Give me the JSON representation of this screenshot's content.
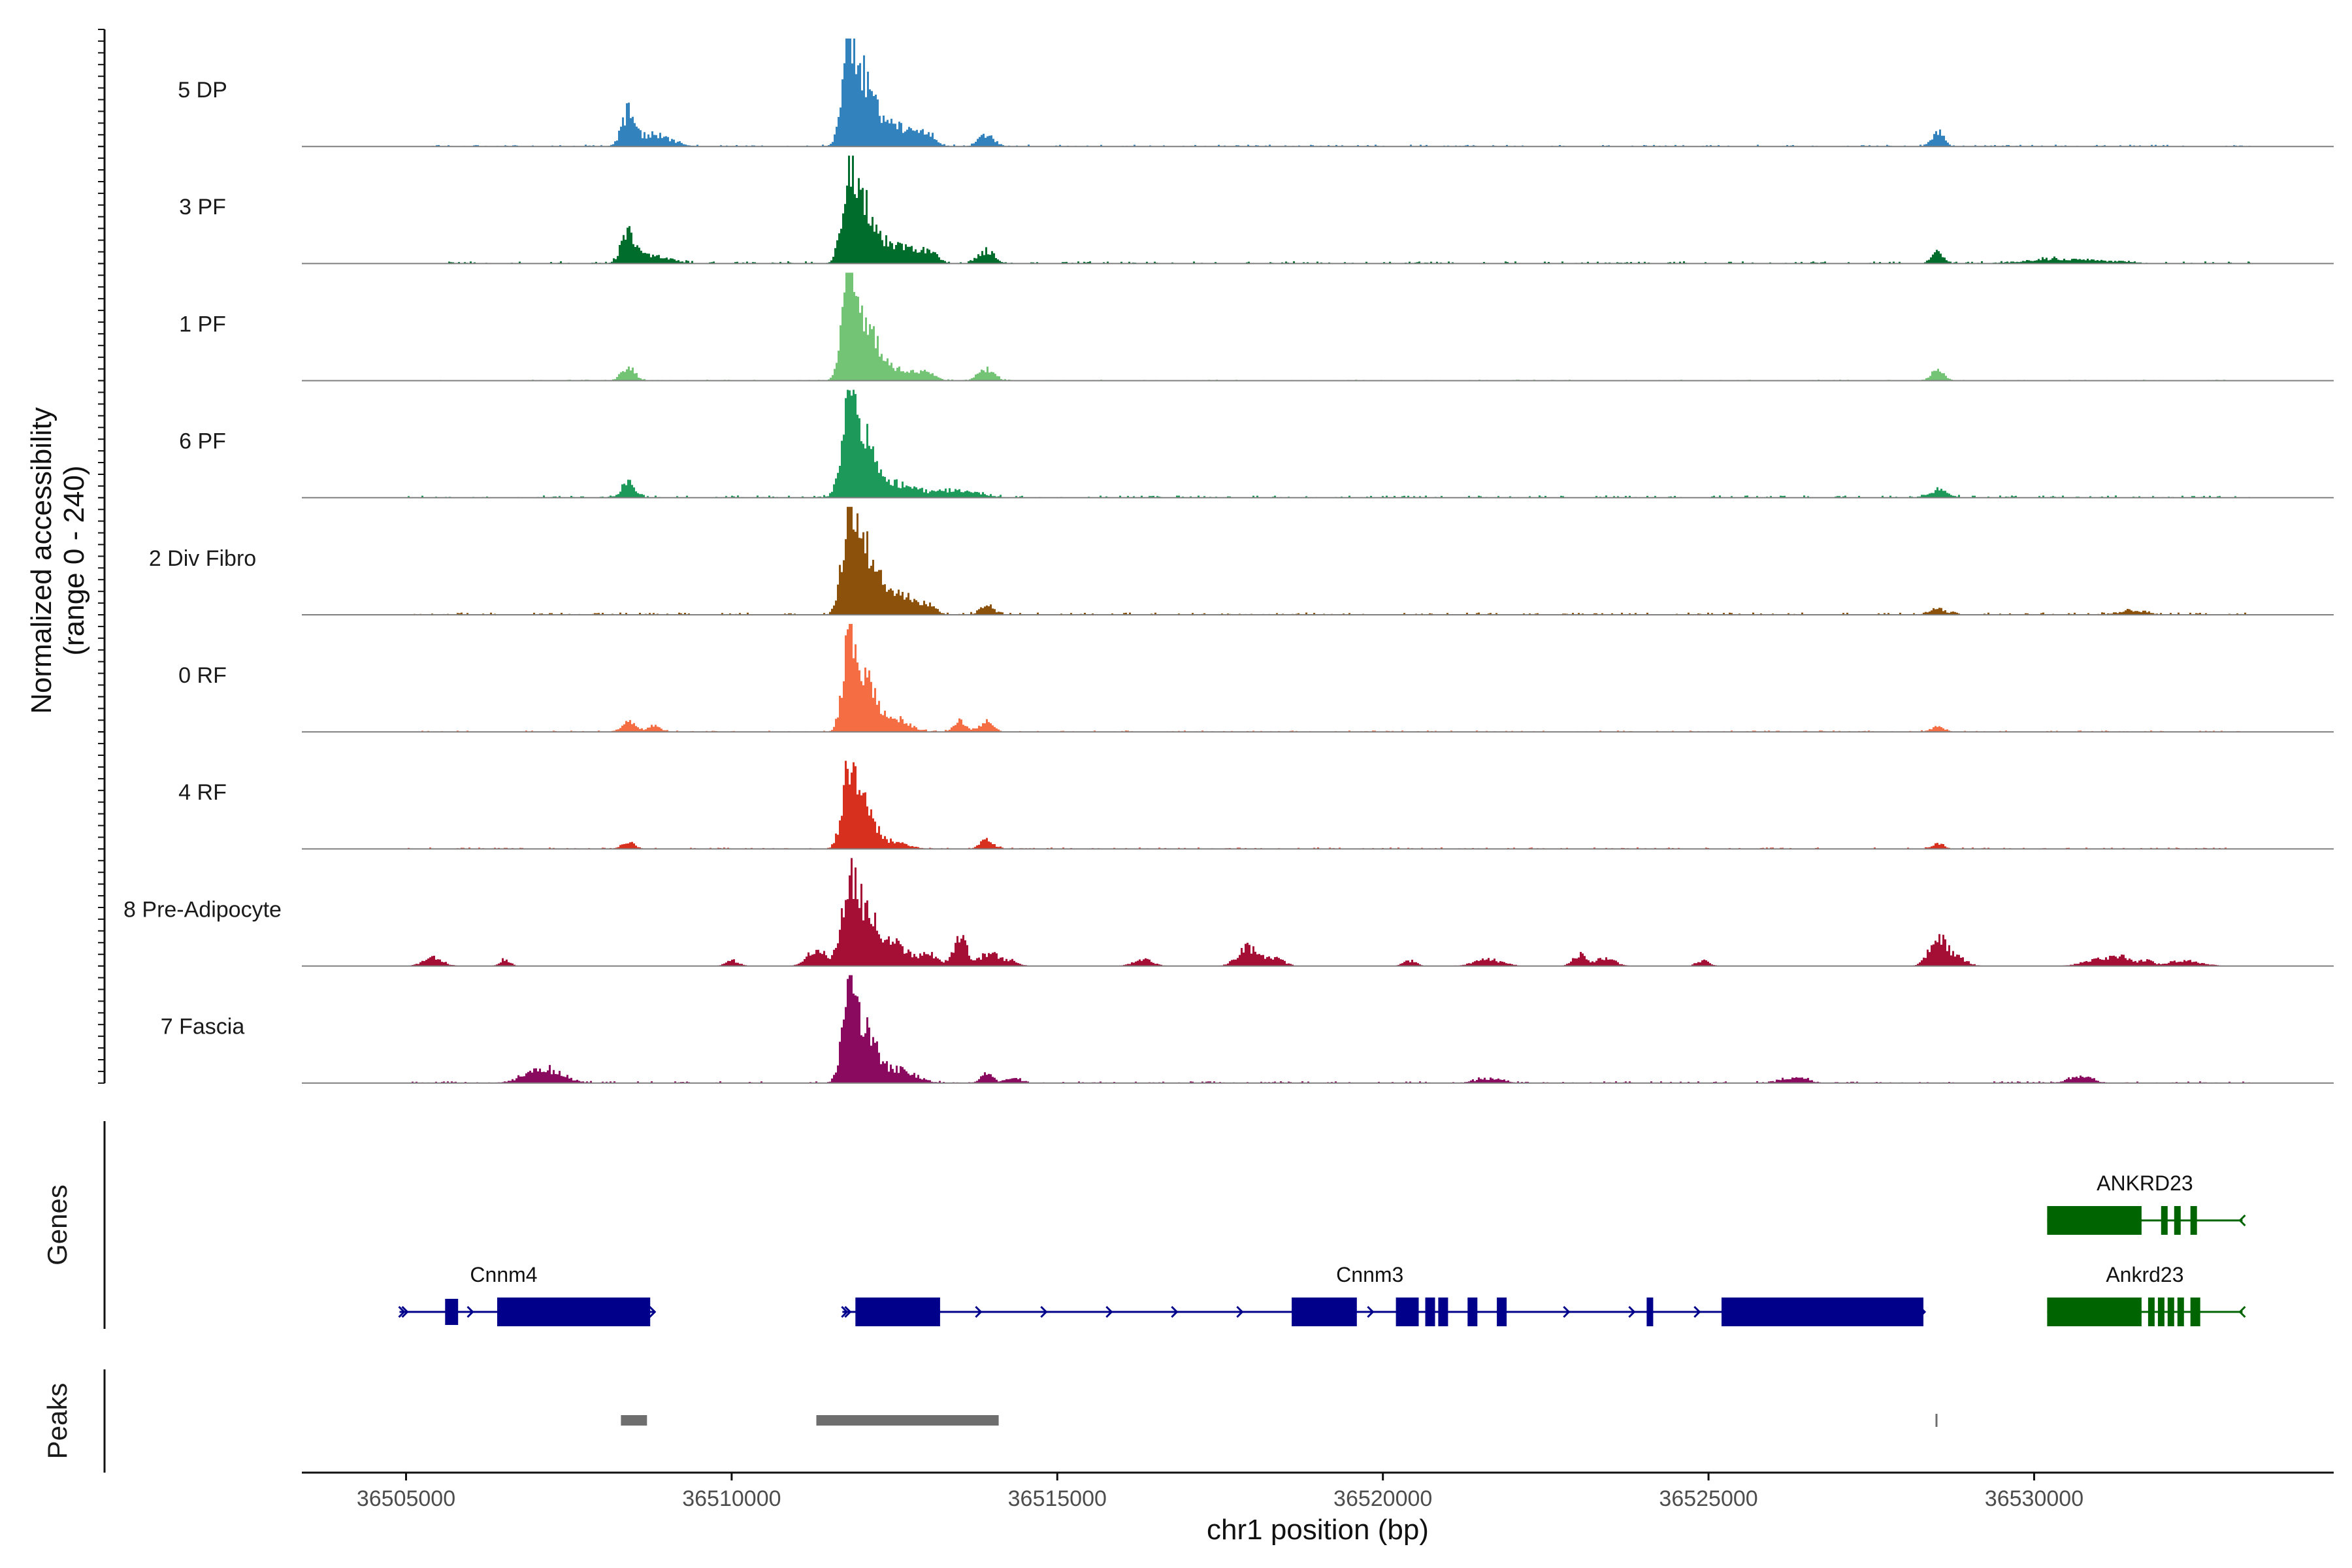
{
  "chart_data": {
    "type": "area",
    "region": {
      "chrom": "chr1",
      "xlim": [
        36503400,
        36534600
      ]
    },
    "ylabel_line1": "Normalized accessibility",
    "ylabel_line2": "(range 0 - 240)",
    "ylim": [
      0,
      240
    ],
    "xlabel": "chr1 position (bp)",
    "xticks": [
      36505000,
      36510000,
      36515000,
      36520000,
      36525000,
      36530000
    ],
    "xtick_labels": [
      "36505000",
      "36510000",
      "36515000",
      "36520000",
      "36525000",
      "36530000"
    ],
    "genes_title": "Genes",
    "peaks_title": "Peaks",
    "series": [
      {
        "name": "5 DP",
        "color": "#3182bd",
        "seed": 11,
        "noise": 4,
        "extent": [
          36505400,
          36533300
        ],
        "peaks": [
          [
            36508400,
            70,
            100
          ],
          [
            36508800,
            25,
            250
          ],
          [
            36511800,
            225,
            110
          ],
          [
            36512050,
            120,
            140
          ],
          [
            36512500,
            45,
            260
          ],
          [
            36513000,
            22,
            120
          ],
          [
            36513900,
            25,
            120
          ],
          [
            36528500,
            32,
            90
          ]
        ]
      },
      {
        "name": "3 PF",
        "color": "#006d2c",
        "seed": 23,
        "noise": 5,
        "extent": [
          36505200,
          36533300
        ],
        "peaks": [
          [
            36508400,
            60,
            110
          ],
          [
            36508800,
            18,
            250
          ],
          [
            36511800,
            195,
            110
          ],
          [
            36512050,
            110,
            150
          ],
          [
            36512500,
            40,
            280
          ],
          [
            36513000,
            22,
            140
          ],
          [
            36513900,
            28,
            120
          ],
          [
            36528500,
            22,
            90
          ],
          [
            36530500,
            10,
            600
          ]
        ]
      },
      {
        "name": "1 PF",
        "color": "#74c476",
        "seed": 37,
        "noise": 2,
        "extent": [
          36505400,
          36533300
        ],
        "peaks": [
          [
            36508400,
            30,
            100
          ],
          [
            36511800,
            215,
            110
          ],
          [
            36512050,
            120,
            160
          ],
          [
            36512500,
            25,
            300
          ],
          [
            36513000,
            12,
            120
          ],
          [
            36513900,
            25,
            120
          ],
          [
            36528500,
            22,
            100
          ]
        ]
      },
      {
        "name": "6 PF",
        "color": "#1d9a5a",
        "seed": 41,
        "noise": 5,
        "extent": [
          36505000,
          36533300
        ],
        "peaks": [
          [
            36508400,
            30,
            100
          ],
          [
            36511800,
            185,
            120
          ],
          [
            36512050,
            100,
            160
          ],
          [
            36512500,
            30,
            350
          ],
          [
            36513500,
            14,
            300
          ],
          [
            36528500,
            16,
            150
          ]
        ]
      },
      {
        "name": "2 Div Fibro",
        "color": "#8c510a",
        "seed": 53,
        "noise": 5,
        "extent": [
          36505000,
          36533300
        ],
        "peaks": [
          [
            36511800,
            230,
            110
          ],
          [
            36512050,
            130,
            150
          ],
          [
            36512500,
            55,
            250
          ],
          [
            36513000,
            18,
            120
          ],
          [
            36513900,
            22,
            100
          ],
          [
            36528500,
            14,
            120
          ],
          [
            36531500,
            10,
            200
          ]
        ]
      },
      {
        "name": "0 RF",
        "color": "#f46d43",
        "seed": 67,
        "noise": 3,
        "extent": [
          36505000,
          36533300
        ],
        "peaks": [
          [
            36508400,
            22,
            100
          ],
          [
            36508800,
            14,
            100
          ],
          [
            36511800,
            220,
            100
          ],
          [
            36512050,
            110,
            140
          ],
          [
            36512500,
            30,
            200
          ],
          [
            36513500,
            22,
            100
          ],
          [
            36513900,
            20,
            100
          ],
          [
            36528500,
            12,
            100
          ]
        ]
      },
      {
        "name": "4 RF",
        "color": "#d7301f",
        "seed": 71,
        "noise": 3,
        "extent": [
          36505000,
          36533300
        ],
        "peaks": [
          [
            36508400,
            16,
            100
          ],
          [
            36511800,
            175,
            110
          ],
          [
            36512050,
            85,
            150
          ],
          [
            36512500,
            15,
            200
          ],
          [
            36513900,
            20,
            100
          ],
          [
            36528500,
            10,
            100
          ]
        ]
      },
      {
        "name": "8 Pre-Adipocyte",
        "color": "#a50f35",
        "seed": 83,
        "noise": 0,
        "extent": [
          36505000,
          36533300
        ],
        "peaks": [
          [
            36505400,
            18,
            150
          ],
          [
            36506500,
            15,
            80
          ],
          [
            36510000,
            12,
            100
          ],
          [
            36511300,
            35,
            150
          ],
          [
            36511800,
            185,
            120
          ],
          [
            36512100,
            110,
            150
          ],
          [
            36512500,
            50,
            180
          ],
          [
            36513000,
            28,
            150
          ],
          [
            36513500,
            65,
            100
          ],
          [
            36513950,
            30,
            140
          ],
          [
            36514300,
            12,
            100
          ],
          [
            36516300,
            14,
            150
          ],
          [
            36517900,
            40,
            150
          ],
          [
            36518300,
            18,
            150
          ],
          [
            36520400,
            12,
            100
          ],
          [
            36521600,
            14,
            220
          ],
          [
            36523000,
            25,
            100
          ],
          [
            36523400,
            18,
            150
          ],
          [
            36524900,
            12,
            100
          ],
          [
            36528500,
            60,
            130
          ],
          [
            36528800,
            18,
            150
          ],
          [
            36531000,
            14,
            250
          ],
          [
            36531300,
            16,
            150
          ],
          [
            36531700,
            12,
            100
          ],
          [
            36532300,
            12,
            250
          ]
        ]
      },
      {
        "name": "7 Fascia",
        "color": "#8a0a60",
        "seed": 97,
        "noise": 4,
        "extent": [
          36505000,
          36533300
        ],
        "peaks": [
          [
            36507100,
            30,
            280
          ],
          [
            36511800,
            190,
            110
          ],
          [
            36512050,
            100,
            150
          ],
          [
            36512500,
            30,
            280
          ],
          [
            36513900,
            20,
            100
          ],
          [
            36514300,
            12,
            100
          ],
          [
            36521600,
            10,
            200
          ],
          [
            36526300,
            12,
            200
          ],
          [
            36530700,
            14,
            180
          ]
        ]
      }
    ],
    "genes": [
      {
        "name": "Cnnm4",
        "row": 2,
        "color": "#00008b",
        "strand": "+",
        "start": 36504900,
        "end": 36508800,
        "label_at": 36506500,
        "exons": [
          [
            36505600,
            36505800,
            "thin"
          ],
          [
            36506400,
            36508750,
            "thick"
          ]
        ]
      },
      {
        "name": "Cnnm3",
        "row": 2,
        "color": "#00008b",
        "strand": "+",
        "start": 36511700,
        "end": 36528300,
        "label_at": 36519800,
        "exons": [
          [
            36511900,
            36513200,
            "thick"
          ],
          [
            36518600,
            36519600,
            "thick"
          ],
          [
            36520200,
            36520550,
            "thick"
          ],
          [
            36520650,
            36520800,
            "thick"
          ],
          [
            36520850,
            36521000,
            "thick"
          ],
          [
            36521300,
            36521450,
            "thick"
          ],
          [
            36521750,
            36521900,
            "thick"
          ],
          [
            36524050,
            36524150,
            "thick"
          ],
          [
            36525200,
            36528300,
            "thick"
          ]
        ]
      },
      {
        "name": "ANKRD23",
        "row": 1,
        "color": "#006400",
        "strand": "-",
        "start": 36530200,
        "end": 36533200,
        "label_at": 36531700,
        "exons": [
          [
            36530200,
            36531650,
            "thick"
          ],
          [
            36531950,
            36532050,
            "thick"
          ],
          [
            36532150,
            36532250,
            "thick"
          ],
          [
            36532400,
            36532500,
            "thick"
          ]
        ]
      },
      {
        "name": "Ankrd23",
        "row": 2,
        "color": "#006400",
        "strand": "-",
        "start": 36530200,
        "end": 36533200,
        "label_at": 36531700,
        "exons": [
          [
            36530200,
            36531650,
            "thick"
          ],
          [
            36531750,
            36531850,
            "thick"
          ],
          [
            36531900,
            36532000,
            "thick"
          ],
          [
            36532050,
            36532150,
            "thick"
          ],
          [
            36532200,
            36532300,
            "thick"
          ],
          [
            36532400,
            36532550,
            "thick"
          ]
        ]
      }
    ],
    "peak_regions": [
      [
        36508300,
        36508700
      ],
      [
        36511300,
        36514100
      ],
      [
        36528480,
        36528520
      ]
    ]
  }
}
